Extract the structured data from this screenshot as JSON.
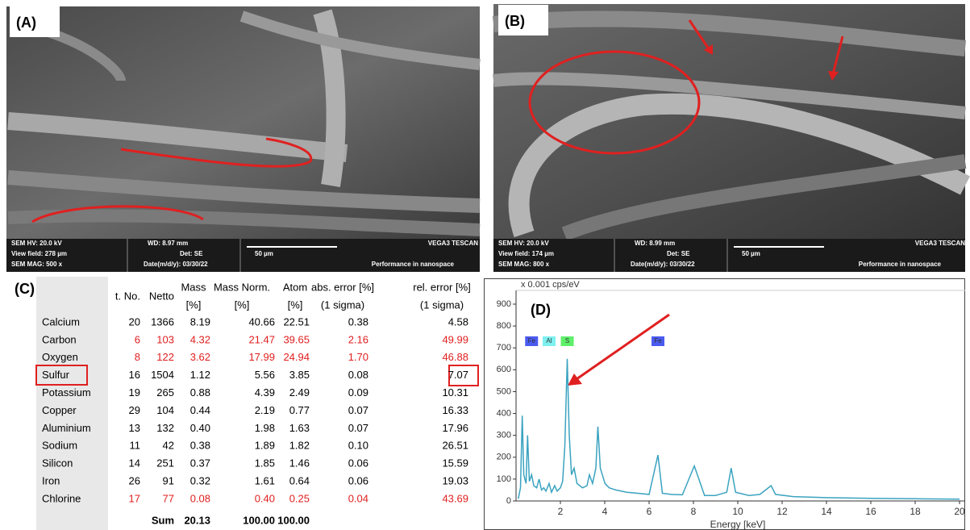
{
  "panels": [
    {
      "label": "(A)",
      "sem_info": [
        "SEM HV: 20.0 kV",
        "WD: 8.97 mm",
        "VEGA3 TESCAN",
        "View field: 278 µm",
        "Det: SE",
        "50 µm",
        "SEM MAG: 500 x",
        "Date(m/d/y): 03/30/22",
        "Performance in nanospace"
      ]
    },
    {
      "label": "(B)",
      "sem_info": [
        "SEM HV: 20.0 kV",
        "WD: 8.99 mm",
        "VEGA3 TESCAN",
        "View field: 174 µm",
        "Det: SE",
        "50 µm",
        "SEM MAG: 800 x",
        "Date(m/d/y): 03/30/22",
        "Performance in nanospace"
      ]
    },
    {
      "label": "(C)"
    },
    {
      "label": "(D)"
    }
  ],
  "table": {
    "header": [
      [
        "t. No."
      ],
      [
        "Netto"
      ],
      [
        "Mass",
        "[%]"
      ],
      [
        "Mass Norm.",
        "[%]"
      ],
      [
        "Atom",
        "[%]"
      ],
      [
        "abs. error [%]",
        "(1 sigma)"
      ],
      [
        "rel. error [%]",
        "(1 sigma)"
      ]
    ],
    "rows": [
      {
        "cells": [
          "Calcium",
          "20",
          "1366",
          "8.19",
          "40.66",
          "22.51",
          "0.38",
          "4.58"
        ],
        "color": "#000000"
      },
      {
        "cells": [
          "Carbon",
          "6",
          "103",
          "4.32",
          "21.47",
          "39.65",
          "2.16",
          "49.99"
        ],
        "color": "#e01e1e"
      },
      {
        "cells": [
          "Oxygen",
          "8",
          "122",
          "3.62",
          "17.99",
          "24.94",
          "1.70",
          "46.88"
        ],
        "color": "#e01e1e"
      },
      {
        "cells": [
          "Sulfur",
          "16",
          "1504",
          "1.12",
          "5.56",
          "3.85",
          "0.08",
          "7.07"
        ],
        "color": "#000000"
      },
      {
        "cells": [
          "Potassium",
          "19",
          "265",
          "0.88",
          "4.39",
          "2.49",
          "0.09",
          "10.31"
        ],
        "color": "#000000"
      },
      {
        "cells": [
          "Copper",
          "29",
          "104",
          "0.44",
          "2.19",
          "0.77",
          "0.07",
          "16.33"
        ],
        "color": "#000000"
      },
      {
        "cells": [
          "Aluminium",
          "13",
          "132",
          "0.40",
          "1.98",
          "1.63",
          "0.07",
          "17.96"
        ],
        "color": "#000000"
      },
      {
        "cells": [
          "Sodium",
          "11",
          "42",
          "0.38",
          "1.89",
          "1.82",
          "0.10",
          "26.51"
        ],
        "color": "#000000"
      },
      {
        "cells": [
          "Silicon",
          "14",
          "251",
          "0.37",
          "1.85",
          "1.46",
          "0.06",
          "15.59"
        ],
        "color": "#000000"
      },
      {
        "cells": [
          "Iron",
          "26",
          "91",
          "0.32",
          "1.61",
          "0.64",
          "0.06",
          "19.03"
        ],
        "color": "#000000"
      },
      {
        "cells": [
          "Chlorine",
          "17",
          "77",
          "0.08",
          "0.40",
          "0.25",
          "0.04",
          "43.69"
        ],
        "color": "#e01e1e"
      }
    ],
    "sum": [
      "Sum",
      "20.13",
      "100.00",
      "100.00"
    ]
  },
  "chart_data": {
    "type": "line",
    "y_unit_label": "x 0.001 cps/eV",
    "xlabel": "Energy [keV]",
    "x": [
      0.1,
      0.2,
      0.28,
      0.35,
      0.45,
      0.52,
      0.6,
      0.7,
      0.8,
      0.93,
      1.04,
      1.15,
      1.25,
      1.35,
      1.49,
      1.6,
      1.74,
      1.85,
      2.0,
      2.1,
      2.2,
      2.31,
      2.4,
      2.5,
      2.62,
      2.75,
      3.0,
      3.2,
      3.31,
      3.45,
      3.6,
      3.69,
      3.8,
      4.01,
      4.2,
      4.5,
      5,
      5.5,
      6,
      6.4,
      6.6,
      7,
      7.5,
      8.04,
      8.5,
      9,
      9.5,
      9.7,
      9.9,
      10.5,
      11,
      11.5,
      11.7,
      12.5,
      14,
      16,
      18,
      20
    ],
    "values": [
      10,
      60,
      390,
      120,
      80,
      300,
      90,
      120,
      70,
      60,
      100,
      50,
      60,
      45,
      80,
      40,
      70,
      45,
      60,
      90,
      250,
      650,
      300,
      120,
      150,
      80,
      60,
      70,
      120,
      80,
      150,
      340,
      150,
      80,
      60,
      50,
      40,
      35,
      30,
      210,
      35,
      30,
      28,
      160,
      25,
      25,
      40,
      150,
      40,
      25,
      30,
      70,
      30,
      20,
      15,
      12,
      10,
      8
    ],
    "color": "#3aa3c0",
    "xlim": [
      0,
      20
    ],
    "ylim": [
      0,
      900
    ],
    "xticks": [
      2,
      4,
      6,
      8,
      10,
      12,
      14,
      16,
      18,
      20
    ],
    "yticks": [
      0,
      100,
      200,
      300,
      400,
      500,
      600,
      700,
      800,
      900
    ],
    "markers": [
      {
        "label": "Fe",
        "energy": 0.7,
        "color": "#4a5bf0"
      },
      {
        "label": "Al",
        "energy": 1.49,
        "color": "#7ef0f0"
      },
      {
        "label": "S",
        "energy": 2.31,
        "color": "#5ef06a"
      },
      {
        "label": "Fe",
        "energy": 6.4,
        "color": "#4a5bf0"
      }
    ]
  }
}
